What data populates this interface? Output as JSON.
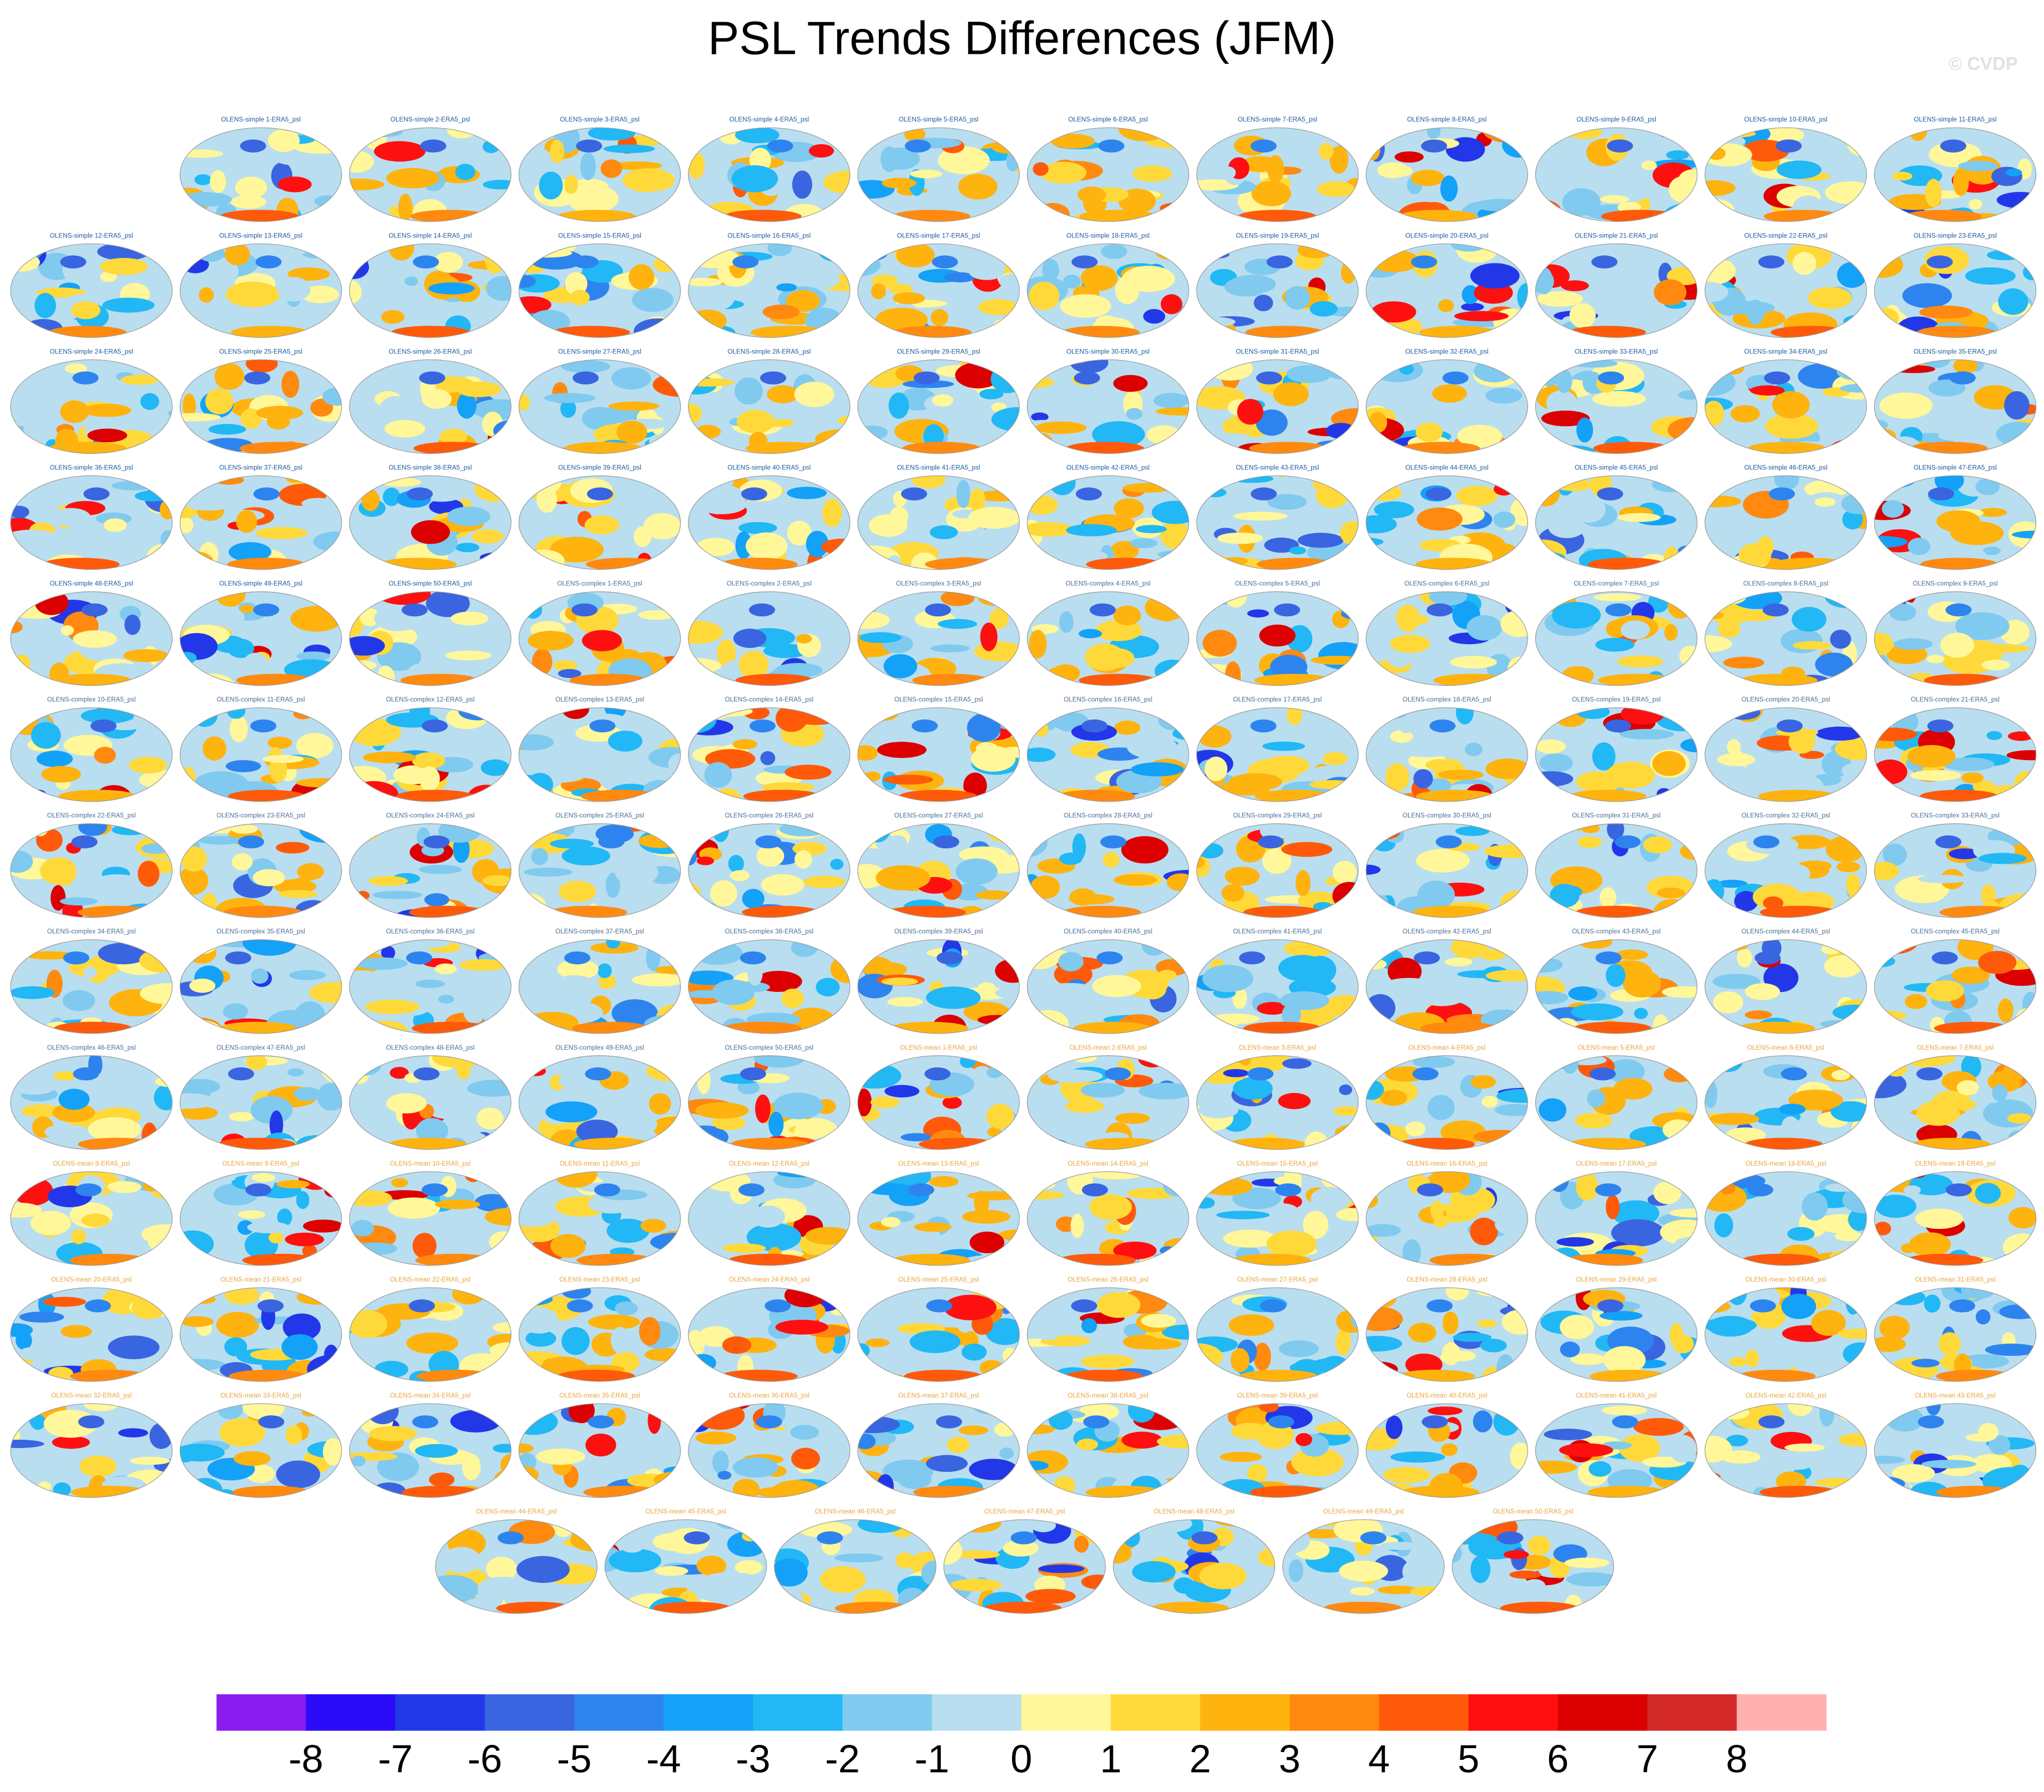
{
  "title": "PSL Trends Differences (JFM)",
  "watermark": "© CVDP",
  "panel_groups": [
    {
      "color": "#1c5a9c",
      "labels": [
        "OLENS-simple 1-ERA5_psl",
        "OLENS-simple 2-ERA5_psl",
        "OLENS-simple 3-ERA5_psl",
        "OLENS-simple 4-ERA5_psl",
        "OLENS-simple 5-ERA5_psl",
        "OLENS-simple 6-ERA5_psl",
        "OLENS-simple 7-ERA5_psl",
        "OLENS-simple 8-ERA5_psl",
        "OLENS-simple 9-ERA5_psl",
        "OLENS-simple 10-ERA5_psl",
        "OLENS-simple 11-ERA5_psl",
        "OLENS-simple 12-ERA5_psl",
        "OLENS-simple 13-ERA5_psl",
        "OLENS-simple 14-ERA5_psl",
        "OLENS-simple 15-ERA5_psl",
        "OLENS-simple 16-ERA5_psl",
        "OLENS-simple 17-ERA5_psl",
        "OLENS-simple 18-ERA5_psl",
        "OLENS-simple 19-ERA5_psl",
        "OLENS-simple 20-ERA5_psl",
        "OLENS-simple 21-ERA5_psl",
        "OLENS-simple 22-ERA5_psl",
        "OLENS-simple 23-ERA5_psl",
        "OLENS-simple 24-ERA5_psl",
        "OLENS-simple 25-ERA5_psl",
        "OLENS-simple 26-ERA5_psl",
        "OLENS-simple 27-ERA5_psl",
        "OLENS-simple 28-ERA5_psl",
        "OLENS-simple 29-ERA5_psl",
        "OLENS-simple 30-ERA5_psl",
        "OLENS-simple 31-ERA5_psl",
        "OLENS-simple 32-ERA5_psl",
        "OLENS-simple 33-ERA5_psl",
        "OLENS-simple 34-ERA5_psl",
        "OLENS-simple 35-ERA5_psl",
        "OLENS-simple 36-ERA5_psl",
        "OLENS-simple 37-ERA5_psl",
        "OLENS-simple 38-ERA5_psl",
        "OLENS-simple 39-ERA5_psl",
        "OLENS-simple 40-ERA5_psl",
        "OLENS-simple 41-ERA5_psl",
        "OLENS-simple 42-ERA5_psl",
        "OLENS-simple 43-ERA5_psl",
        "OLENS-simple 44-ERA5_psl",
        "OLENS-simple 45-ERA5_psl",
        "OLENS-simple 46-ERA5_psl",
        "OLENS-simple 47-ERA5_psl",
        "OLENS-simple 48-ERA5_psl",
        "OLENS-simple 49-ERA5_psl",
        "OLENS-simple 50-ERA5_psl"
      ]
    },
    {
      "color": "#4a6e96",
      "labels": [
        "OLENS-complex 1-ERA5_psl",
        "OLENS-complex 2-ERA5_psl",
        "OLENS-complex 3-ERA5_psl",
        "OLENS-complex 4-ERA5_psl",
        "OLENS-complex 5-ERA5_psl",
        "OLENS-complex 6-ERA5_psl",
        "OLENS-complex 7-ERA5_psl",
        "OLENS-complex 8-ERA5_psl",
        "OLENS-complex 9-ERA5_psl",
        "OLENS-complex 10-ERA5_psl",
        "OLENS-complex 11-ERA5_psl",
        "OLENS-complex 12-ERA5_psl",
        "OLENS-complex 13-ERA5_psl",
        "OLENS-complex 14-ERA5_psl",
        "OLENS-complex 15-ERA5_psl",
        "OLENS-complex 16-ERA5_psl",
        "OLENS-complex 17-ERA5_psl",
        "OLENS-complex 18-ERA5_psl",
        "OLENS-complex 19-ERA5_psl",
        "OLENS-complex 20-ERA5_psl",
        "OLENS-complex 21-ERA5_psl",
        "OLENS-complex 22-ERA5_psl",
        "OLENS-complex 23-ERA5_psl",
        "OLENS-complex 24-ERA5_psl",
        "OLENS-complex 25-ERA5_psl",
        "OLENS-complex 26-ERA5_psl",
        "OLENS-complex 27-ERA5_psl",
        "OLENS-complex 28-ERA5_psl",
        "OLENS-complex 29-ERA5_psl",
        "OLENS-complex 30-ERA5_psl",
        "OLENS-complex 31-ERA5_psl",
        "OLENS-complex 32-ERA5_psl",
        "OLENS-complex 33-ERA5_psl",
        "OLENS-complex 34-ERA5_psl",
        "OLENS-complex 35-ERA5_psl",
        "OLENS-complex 36-ERA5_psl",
        "OLENS-complex 37-ERA5_psl",
        "OLENS-complex 38-ERA5_psl",
        "OLENS-complex 39-ERA5_psl",
        "OLENS-complex 40-ERA5_psl",
        "OLENS-complex 41-ERA5_psl",
        "OLENS-complex 42-ERA5_psl",
        "OLENS-complex 43-ERA5_psl",
        "OLENS-complex 44-ERA5_psl",
        "OLENS-complex 45-ERA5_psl",
        "OLENS-complex 46-ERA5_psl",
        "OLENS-complex 47-ERA5_psl",
        "OLENS-complex 48-ERA5_psl",
        "OLENS-complex 49-ERA5_psl",
        "OLENS-complex 50-ERA5_psl"
      ]
    },
    {
      "color": "#e8a53c",
      "labels": [
        "OLENS-mean 1-ERA5_psl",
        "OLENS-mean 2-ERA5_psl",
        "OLENS-mean 3-ERA5_psl",
        "OLENS-mean 4-ERA5_psl",
        "OLENS-mean 5-ERA5_psl",
        "OLENS-mean 6-ERA5_psl",
        "OLENS-mean 7-ERA5_psl",
        "OLENS-mean 8-ERA5_psl",
        "OLENS-mean 9-ERA5_psl",
        "OLENS-mean 10-ERA5_psl",
        "OLENS-mean 11-ERA5_psl",
        "OLENS-mean 12-ERA5_psl",
        "OLENS-mean 13-ERA5_psl",
        "OLENS-mean 14-ERA5_psl",
        "OLENS-mean 15-ERA5_psl",
        "OLENS-mean 16-ERA5_psl",
        "OLENS-mean 17-ERA5_psl",
        "OLENS-mean 18-ERA5_psl",
        "OLENS-mean 19-ERA5_psl",
        "OLENS-mean 20-ERA5_psl",
        "OLENS-mean 21-ERA5_psl",
        "OLENS-mean 22-ERA5_psl",
        "OLENS-mean 23-ERA5_psl",
        "OLENS-mean 24-ERA5_psl",
        "OLENS-mean 25-ERA5_psl",
        "OLENS-mean 26-ERA5_psl",
        "OLENS-mean 27-ERA5_psl",
        "OLENS-mean 28-ERA5_psl",
        "OLENS-mean 29-ERA5_psl",
        "OLENS-mean 30-ERA5_psl",
        "OLENS-mean 31-ERA5_psl",
        "OLENS-mean 32-ERA5_psl",
        "OLENS-mean 33-ERA5_psl",
        "OLENS-mean 34-ERA5_psl",
        "OLENS-mean 35-ERA5_psl",
        "OLENS-mean 36-ERA5_psl",
        "OLENS-mean 37-ERA5_psl",
        "OLENS-mean 38-ERA5_psl",
        "OLENS-mean 39-ERA5_psl",
        "OLENS-mean 40-ERA5_psl",
        "OLENS-mean 41-ERA5_psl",
        "OLENS-mean 42-ERA5_psl",
        "OLENS-mean 43-ERA5_psl",
        "OLENS-mean 44-ERA5_psl",
        "OLENS-mean 45-ERA5_psl",
        "OLENS-mean 46-ERA5_psl",
        "OLENS-mean 47-ERA5_psl",
        "OLENS-mean 48-ERA5_psl",
        "OLENS-mean 49-ERA5_psl",
        "OLENS-mean 50-ERA5_psl"
      ]
    }
  ],
  "colorbar": {
    "ticks": [
      -8,
      -7,
      -6,
      -5,
      -4,
      -3,
      -2,
      -1,
      0,
      1,
      2,
      3,
      4,
      5,
      6,
      7,
      8
    ],
    "colors": [
      "#8b1cef",
      "#2a0cf8",
      "#2238e8",
      "#3a65e0",
      "#2e84ee",
      "#14a1f8",
      "#21b8f5",
      "#80caef",
      "#b9def0",
      "#fff79a",
      "#ffd93a",
      "#ffb30f",
      "#ff8a0f",
      "#ff5a0a",
      "#ff1010",
      "#dc0000",
      "#d42a2a",
      "#ffb1b1"
    ]
  }
}
